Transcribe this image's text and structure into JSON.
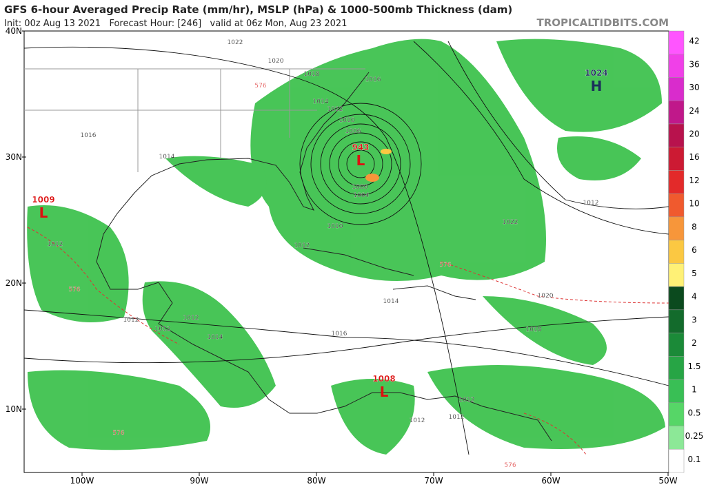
{
  "header": {
    "title": "GFS 6-hour Averaged Precip Rate (mm/hr), MSLP (hPa) & 1000-500mb Thickness (dam)",
    "subtitle": "Init: 00z Aug 13 2021   Forecast Hour: [246]   valid at 06z Mon, Aug 23 2021",
    "site": "TROPICALTIDBITS.COM"
  },
  "lat_labels": [
    "40N",
    "30N",
    "20N",
    "10N"
  ],
  "lon_labels": [
    "100W",
    "90W",
    "80W",
    "70W",
    "60W",
    "50W"
  ],
  "colorbar": {
    "levels": [
      42,
      36,
      30,
      24,
      20,
      16,
      12,
      10,
      8,
      6,
      5,
      4,
      3,
      2,
      1.5,
      1,
      0.5,
      0.25,
      0.1
    ],
    "colors": [
      "#ff55ff",
      "#f040e8",
      "#d92ccc",
      "#c0188a",
      "#b8124d",
      "#cc1a33",
      "#e32a2a",
      "#f05a2e",
      "#f7963a",
      "#fbc842",
      "#fff176",
      "#0b4a1e",
      "#136b2c",
      "#1b8a38",
      "#27a545",
      "#39bf55",
      "#56d667",
      "#8ce897",
      "#ffffff"
    ]
  },
  "centers": [
    {
      "value": "943",
      "symbol": "L"
    },
    {
      "value": "1009",
      "symbol": "L"
    },
    {
      "value": "1008",
      "symbol": "L"
    },
    {
      "value": "1024",
      "symbol": "H"
    }
  ],
  "contour_labels": [
    "1022",
    "1020",
    "1018",
    "1016",
    "1016",
    "1014",
    "1014",
    "1012",
    "1010",
    "1006",
    "1000",
    "1004",
    "1010",
    "1012",
    "1012",
    "1014",
    "1012",
    "1012",
    "1012",
    "1014",
    "1016",
    "1018",
    "1020",
    "1022",
    "1012",
    "1012",
    "1012",
    "1012",
    "576",
    "576",
    "576",
    "576",
    "576"
  ]
}
